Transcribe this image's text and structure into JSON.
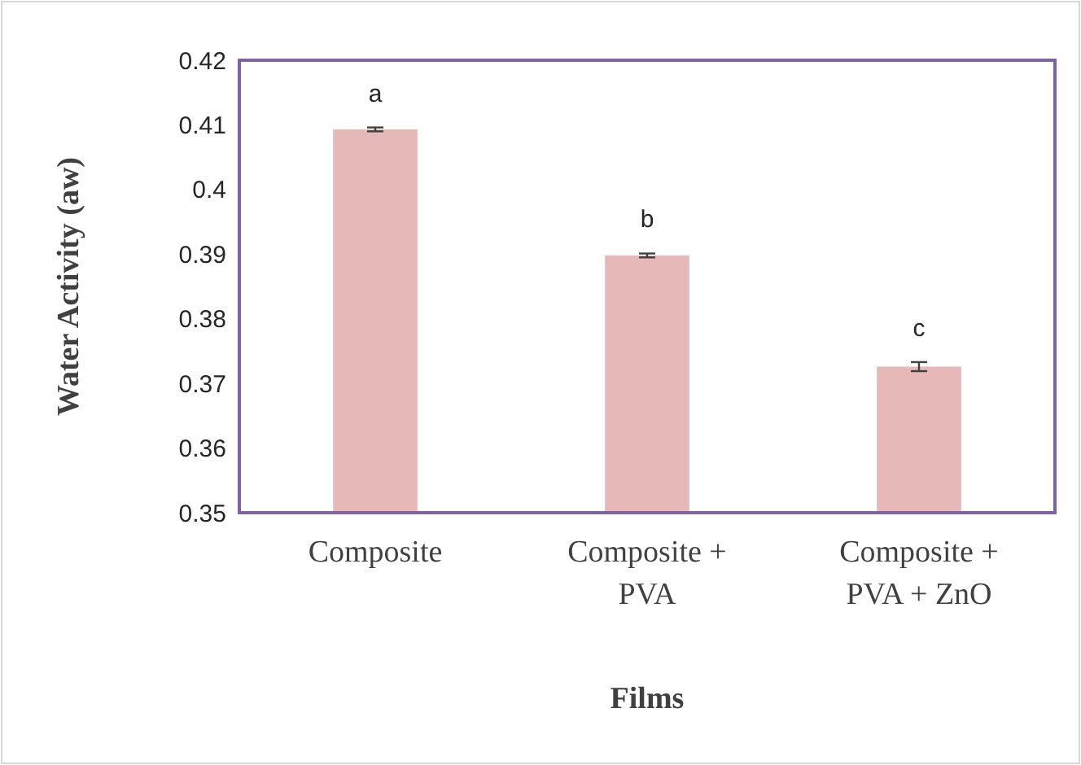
{
  "chart_data": {
    "type": "bar",
    "xlabel": "Films",
    "ylabel": "Water Activity (aw)",
    "categories": [
      "Composite",
      "Composite + PVA",
      "Composite + PVA + ZnO"
    ],
    "values": [
      0.4093,
      0.3898,
      0.3726
    ],
    "errors": [
      0.0003,
      0.0003,
      0.0007
    ],
    "color": "#e6b8b7",
    "ylim": [
      0.35,
      0.42
    ],
    "yticks": [
      0.35,
      0.36,
      0.37,
      0.38,
      0.39,
      0.4,
      0.41,
      0.42
    ],
    "grid": false,
    "annotations": [
      {
        "text": "a",
        "x": "Composite",
        "y": 0.4093
      },
      {
        "text": "b",
        "x": "Composite + PVA",
        "y": 0.3898
      },
      {
        "text": "c",
        "x": "Composite + PVA + ZnO",
        "y": 0.3726
      }
    ]
  }
}
